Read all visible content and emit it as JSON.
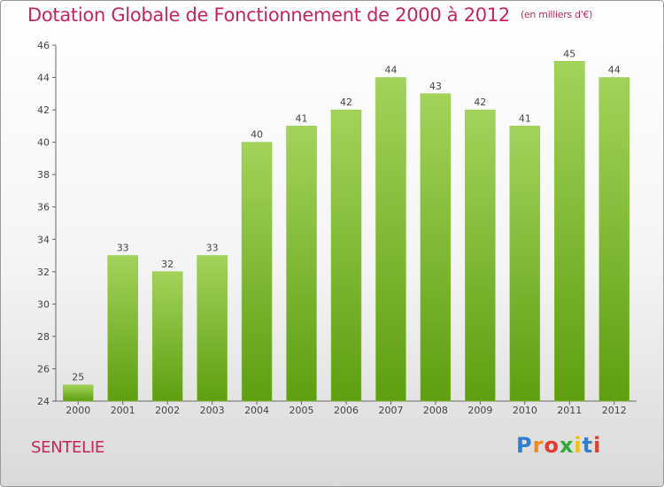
{
  "header": {
    "title": "Dotation Globale de Fonctionnement de 2000 à 2012",
    "unit_note": "(en milliers d'€)"
  },
  "footer": {
    "commune": "SENTELIE",
    "logo_text": "Proxiti"
  },
  "colors": {
    "title": "#c8245a",
    "bar_top": "#a3d35a",
    "bar_bottom": "#5e9e10",
    "axis": "#555555"
  },
  "chart_data": {
    "type": "bar",
    "categories": [
      "2000",
      "2001",
      "2002",
      "2003",
      "2004",
      "2005",
      "2006",
      "2007",
      "2008",
      "2009",
      "2010",
      "2011",
      "2012"
    ],
    "values": [
      25,
      33,
      32,
      33,
      40,
      41,
      42,
      44,
      43,
      42,
      41,
      45,
      44
    ],
    "title": "Dotation Globale de Fonctionnement de 2000 à 2012",
    "ylim": [
      24,
      46
    ],
    "yticks": [
      24,
      26,
      28,
      30,
      32,
      34,
      36,
      38,
      40,
      42,
      44,
      46
    ],
    "grid": false,
    "legend": "none"
  }
}
